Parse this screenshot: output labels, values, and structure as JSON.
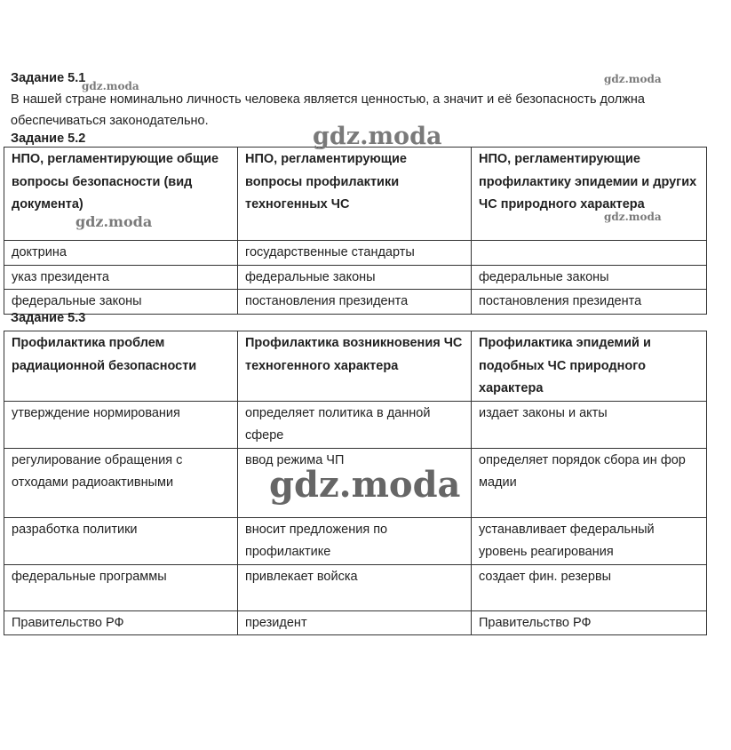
{
  "task_5_1": {
    "title": "Задание 5.1",
    "text": "В нашей стране номинально личность человека является ценностью, а значит и её безопасность должна обеспечиваться законодательно."
  },
  "task_5_2": {
    "title": "Задание 5.2",
    "headers": [
      "НПО, регламентирующие общие вопросы безопасности (вид документа)",
      "НПО, регламентирующие вопросы профилактики техногенных ЧС",
      "НПО, регламентирующие профилактику эпидемии и других ЧС природного характера"
    ],
    "rows": [
      [
        "доктрина",
        "государственные стандарты",
        ""
      ],
      [
        "указ президента",
        "федеральные законы",
        "федеральные законы"
      ],
      [
        "федеральные законы",
        "постановления президента",
        "постановления президента"
      ]
    ]
  },
  "task_5_3": {
    "title": "Задание 5.3",
    "headers": [
      "Профилактика проблем радиационной безопасности",
      "Профилактика возникновения ЧС техногенного характера",
      "Профилактика эпидемий и подобных ЧС природного характера"
    ],
    "rows": [
      [
        "утверждение нормирования",
        "определяет политика в данной сфере",
        "издает законы и акты"
      ],
      [
        "регулирование обращения с отходами радиоактивными",
        "ввод режима ЧП",
        "определяет порядок сбора ин фор мадии"
      ],
      [
        "разработка политики",
        "вносит предложения по профилактике",
        "устанавливает федеральный уровень реагирования"
      ],
      [
        "федеральные программы",
        "привлекает войска",
        "создает фин. резервы"
      ],
      [
        "Правительство РФ",
        "президент",
        "Правительство РФ"
      ]
    ]
  },
  "watermark": "gdz.moda"
}
